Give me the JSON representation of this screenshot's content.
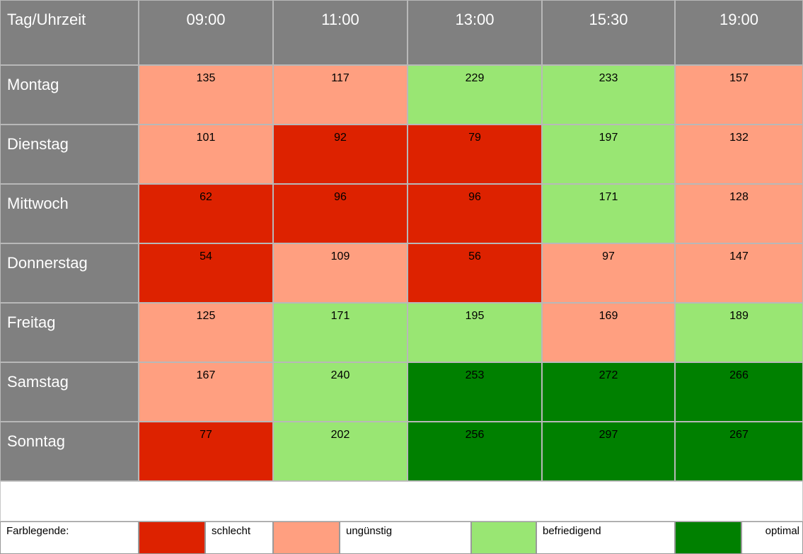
{
  "colors": {
    "header_bg": "#808080",
    "schlecht": "#dd2200",
    "unguenstig": "#ff9f80",
    "befriedigend": "#99e673",
    "optimal": "#008000"
  },
  "chart_data": {
    "type": "heatmap",
    "corner_label": "Tag/Uhrzeit",
    "columns": [
      "09:00",
      "11:00",
      "13:00",
      "15:30",
      "19:00"
    ],
    "rows": [
      "Montag",
      "Dienstag",
      "Mittwoch",
      "Donnerstag",
      "Freitag",
      "Samstag",
      "Sonntag"
    ],
    "values": [
      [
        135,
        117,
        229,
        233,
        157
      ],
      [
        101,
        92,
        79,
        197,
        132
      ],
      [
        62,
        96,
        96,
        171,
        128
      ],
      [
        54,
        109,
        56,
        97,
        147
      ],
      [
        125,
        171,
        195,
        169,
        189
      ],
      [
        167,
        240,
        253,
        272,
        266
      ],
      [
        77,
        202,
        256,
        297,
        267
      ]
    ],
    "categories": [
      [
        "unguenstig",
        "unguenstig",
        "befriedigend",
        "befriedigend",
        "unguenstig"
      ],
      [
        "unguenstig",
        "schlecht",
        "schlecht",
        "befriedigend",
        "unguenstig"
      ],
      [
        "schlecht",
        "schlecht",
        "schlecht",
        "befriedigend",
        "unguenstig"
      ],
      [
        "schlecht",
        "unguenstig",
        "schlecht",
        "unguenstig",
        "unguenstig"
      ],
      [
        "unguenstig",
        "befriedigend",
        "befriedigend",
        "unguenstig",
        "befriedigend"
      ],
      [
        "unguenstig",
        "befriedigend",
        "optimal",
        "optimal",
        "optimal"
      ],
      [
        "schlecht",
        "befriedigend",
        "optimal",
        "optimal",
        "optimal"
      ]
    ],
    "legend": {
      "title": "Farblegende:",
      "items": [
        {
          "key": "schlecht",
          "label": "schlecht"
        },
        {
          "key": "unguenstig",
          "label": "ungünstig"
        },
        {
          "key": "befriedigend",
          "label": "befriedigend"
        },
        {
          "key": "optimal",
          "label": "optimal"
        }
      ]
    }
  }
}
